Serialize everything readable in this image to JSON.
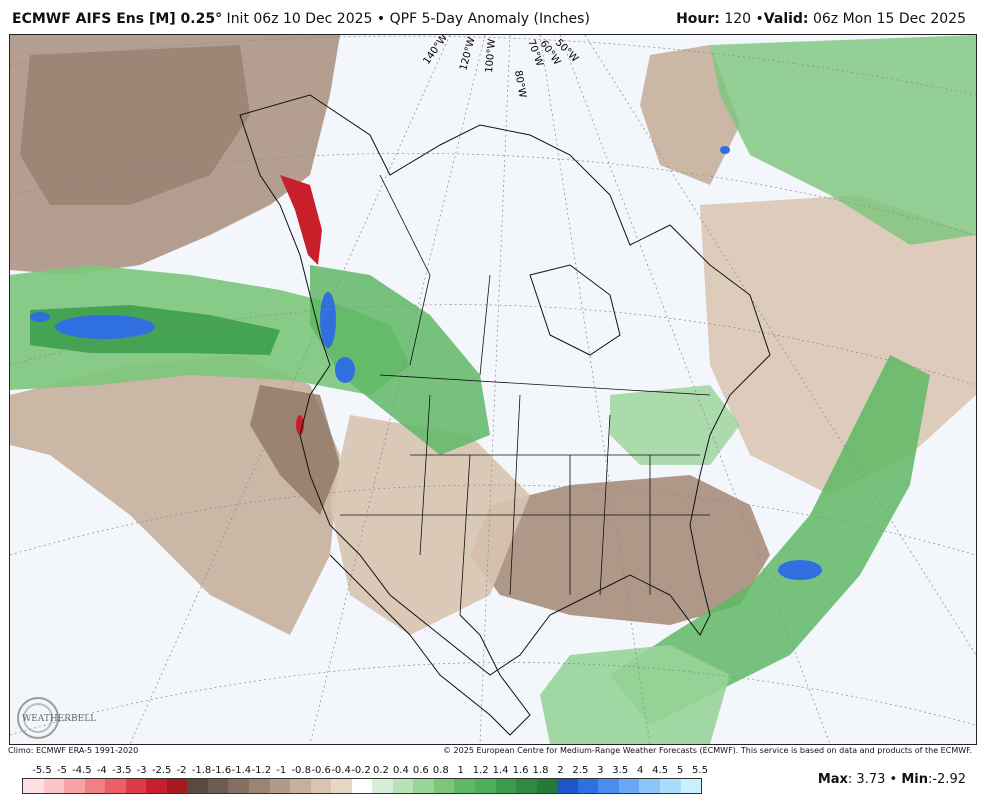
{
  "header": {
    "model": "ECMWF AIFS Ens [M] 0.25",
    "degree": "°",
    "init": " Init 06z 10 Dec 2025",
    "bullet": " • ",
    "product": "QPF 5-Day Anomaly (Inches)",
    "hour_label": "Hour:",
    "hour_value": " 120 ",
    "valid_label": "Valid:",
    "valid_value": " 06z Mon 15 Dec 2025"
  },
  "map": {
    "longitude_labels": [
      "140°W",
      "120°W",
      "100°W",
      "80°W",
      "70°W",
      "60°W",
      "50°W"
    ],
    "ocean_color": "#f3f6fb",
    "dry_color": "#a88e7c",
    "wet_color": "#4caf5b",
    "very_wet_color": "#2f7fe0",
    "extreme_dry_color": "#c8202a"
  },
  "logo": {
    "text": "WEATHERBELL"
  },
  "footer": {
    "climo": "Climo: ECMWF ERA-5 1991-2020",
    "copyright": "© 2025 European Centre for Medium-Range Weather Forecasts (ECMWF). This service is based on data and products of the ECMWF."
  },
  "colorbar": {
    "labels": [
      "-5.5",
      "-5",
      "-4.5",
      "-4",
      "-3.5",
      "-3",
      "-2.5",
      "-2",
      "-1.8",
      "-1.6",
      "-1.4",
      "-1.2",
      "-1",
      "-0.8",
      "-0.6",
      "-0.4",
      "-0.2",
      "0.2",
      "0.4",
      "0.6",
      "0.8",
      "1",
      "1.2",
      "1.4",
      "1.6",
      "1.8",
      "2",
      "2.5",
      "3",
      "3.5",
      "4",
      "4.5",
      "5",
      "5.5"
    ],
    "colors": [
      "#fde0e2",
      "#fcc5c8",
      "#f7a3a6",
      "#f08085",
      "#e96067",
      "#dc3d44",
      "#c8202a",
      "#a8181f",
      "#5a4a40",
      "#6e5c50",
      "#847062",
      "#9a8474",
      "#b09a88",
      "#c6b09c",
      "#d8c4b0",
      "#e6d6c6",
      "#ffffff",
      "#d6efd6",
      "#b8e2b8",
      "#98d498",
      "#7cc67c",
      "#5fb865",
      "#4caf5b",
      "#3a9c4b",
      "#2f8a40",
      "#267a38",
      "#1e56c8",
      "#2f6fe0",
      "#4a8cf0",
      "#6aa8f6",
      "#8cc4fa",
      "#aadcfc",
      "#c8f0fe"
    ],
    "max_label": "Max",
    "max_value": ": 3.73 • ",
    "min_label": "Min",
    "min_value": ":-2.92"
  }
}
